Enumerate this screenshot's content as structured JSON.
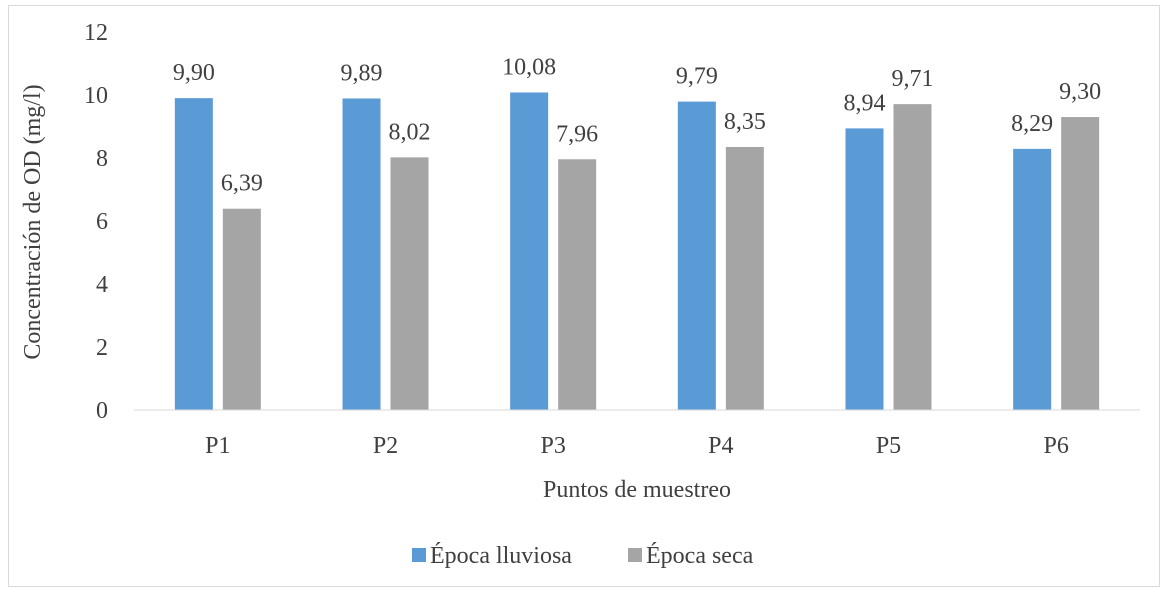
{
  "chart_data": {
    "type": "bar",
    "title": "",
    "xlabel": "Puntos de muestreo",
    "ylabel": "Concentración de OD (mg/l)",
    "ylim": [
      0,
      12
    ],
    "yticks": [
      0,
      2,
      4,
      6,
      8,
      10,
      12
    ],
    "grid": false,
    "legend_position": "bottom",
    "categories": [
      "P1",
      "P2",
      "P3",
      "P4",
      "P5",
      "P6"
    ],
    "series": [
      {
        "name": "Época lluviosa",
        "color": "#5b9bd5",
        "values": [
          9.9,
          9.89,
          10.08,
          9.79,
          8.94,
          8.29
        ],
        "labels": [
          "9,90",
          "9,89",
          "10,08",
          "9,79",
          "8,94",
          "8,29"
        ]
      },
      {
        "name": "Época seca",
        "color": "#a5a5a5",
        "values": [
          6.39,
          8.02,
          7.96,
          8.35,
          9.71,
          9.3
        ],
        "labels": [
          "6,39",
          "8,02",
          "7,96",
          "8,35",
          "9,71",
          "9,30"
        ]
      }
    ]
  }
}
